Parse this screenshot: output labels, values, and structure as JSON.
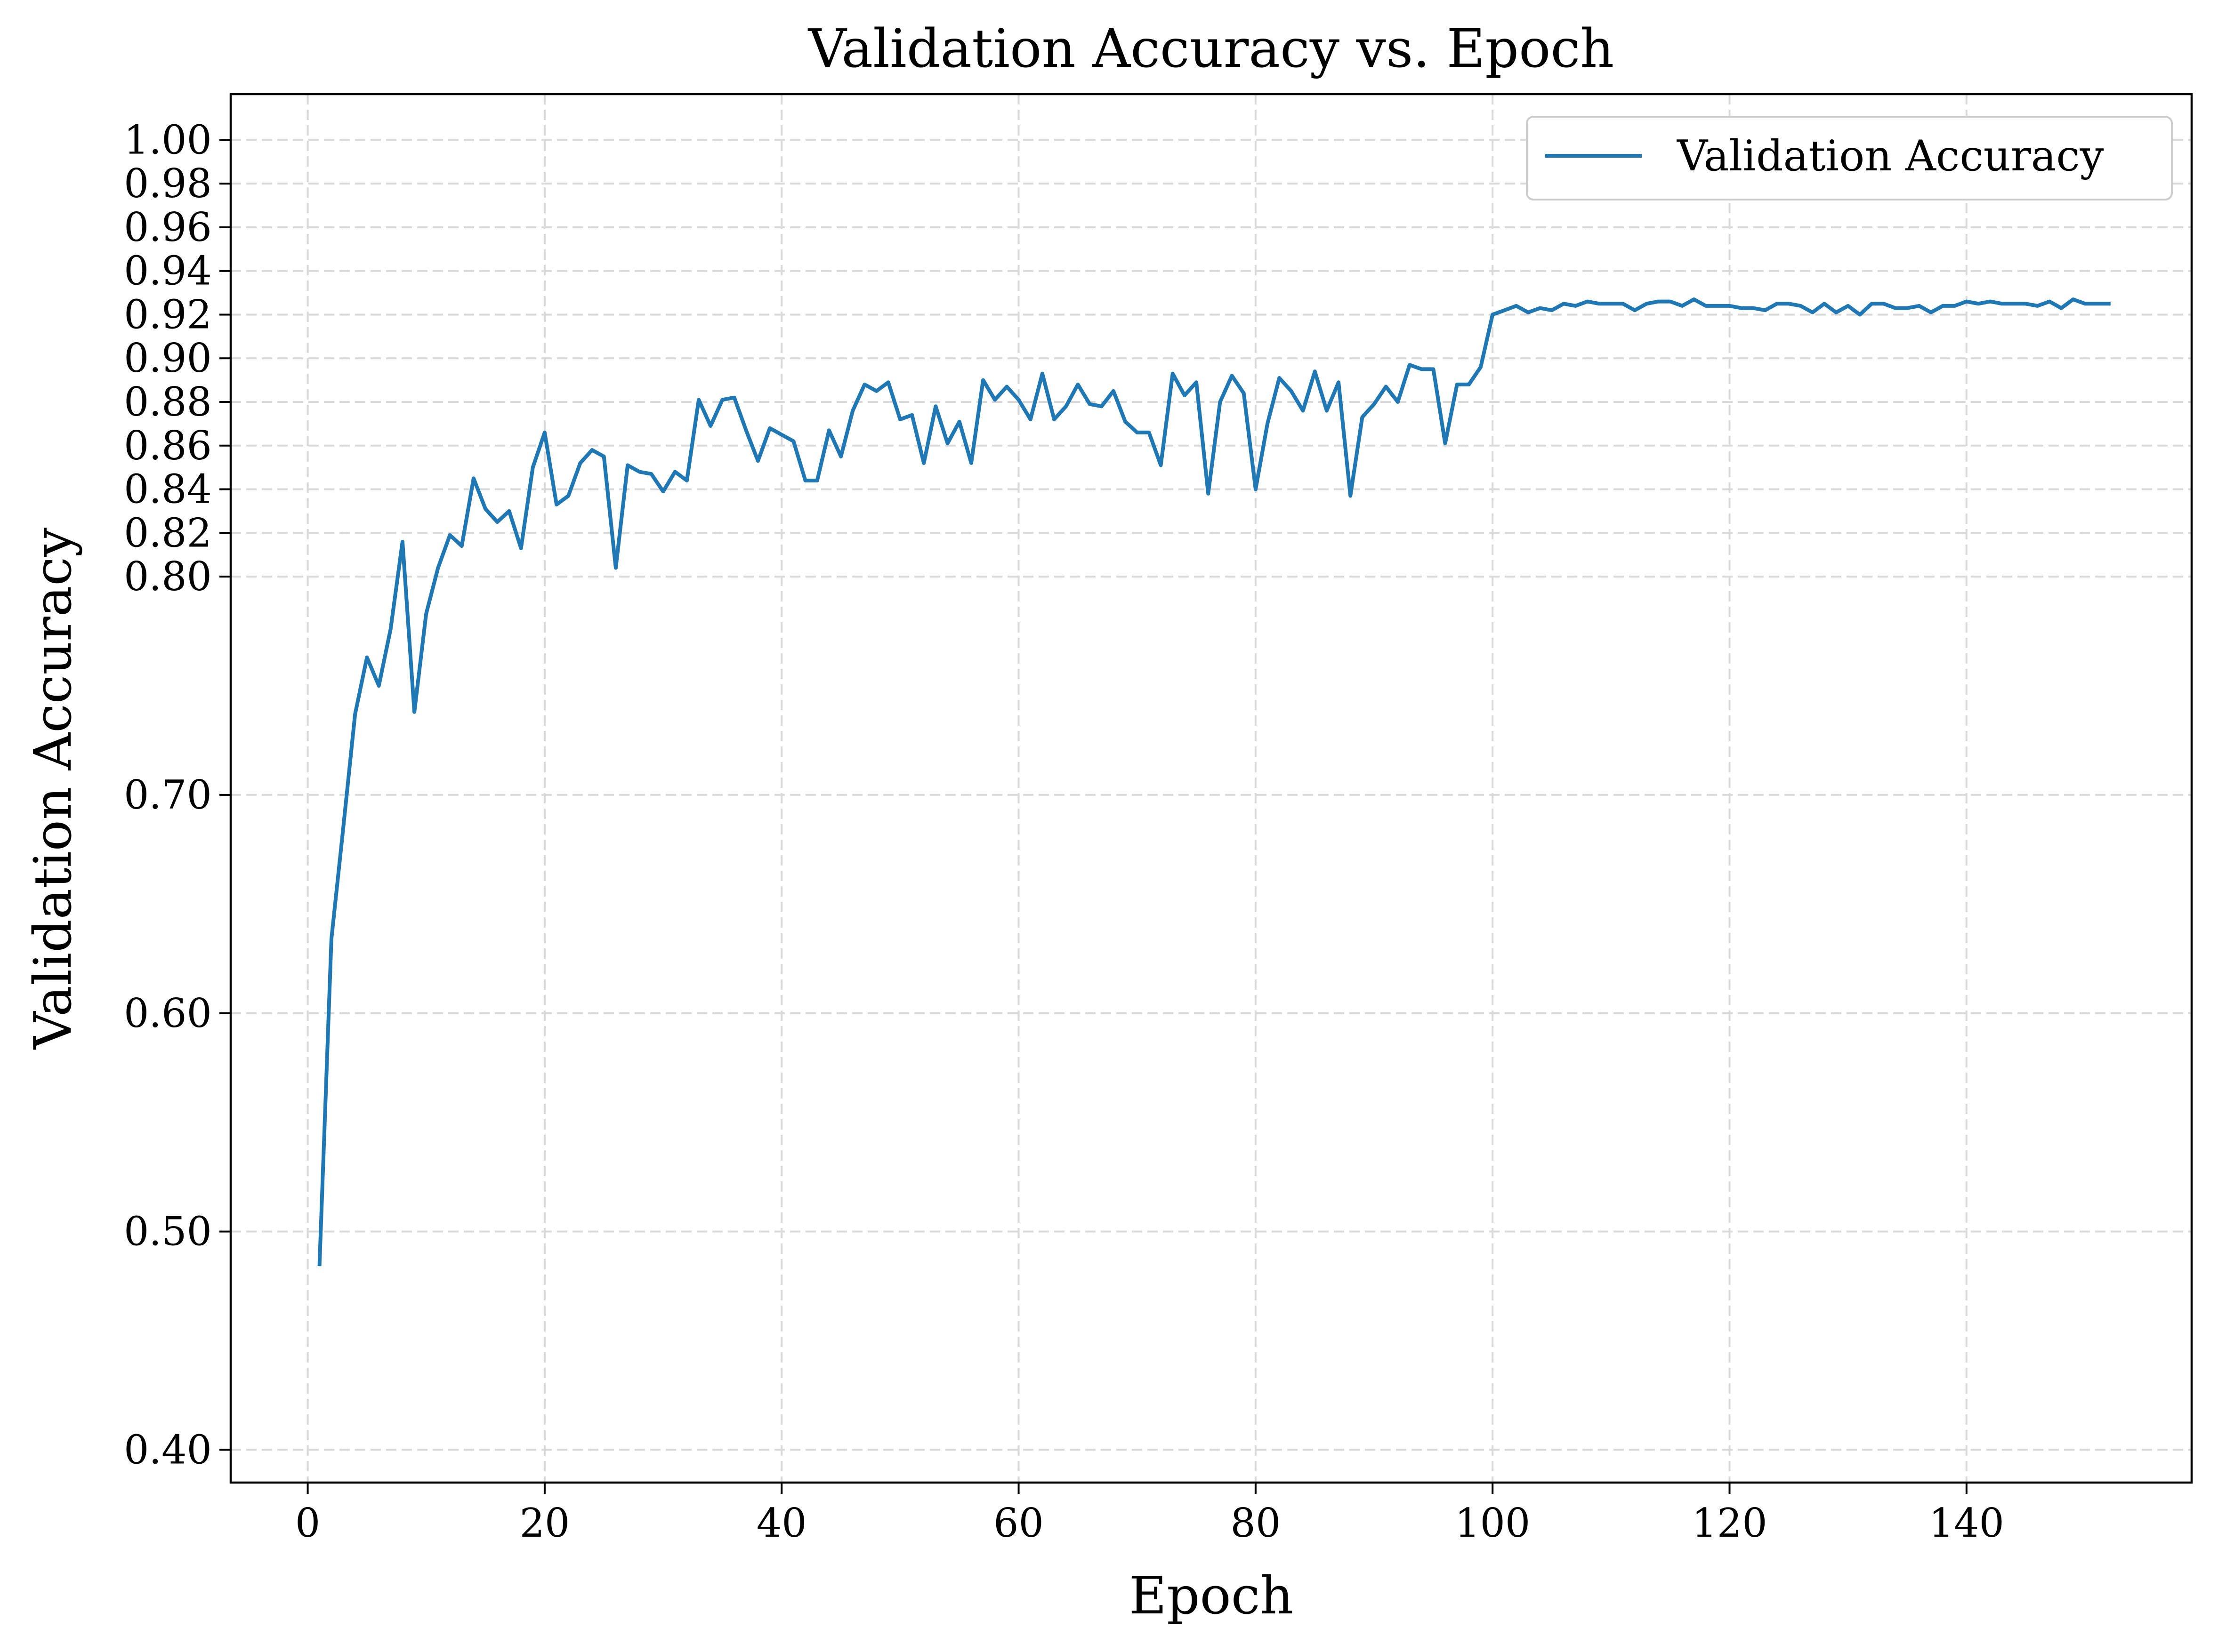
{
  "chart_data": {
    "type": "line",
    "title": "Validation Accuracy vs. Epoch",
    "xlabel": "Epoch",
    "ylabel": "Validation Accuracy",
    "xlim": [
      -6.5,
      159
    ],
    "ylim": [
      0.385,
      1.021
    ],
    "xticks": [
      0,
      20,
      40,
      60,
      80,
      100,
      120,
      140
    ],
    "xtick_labels": [
      "0",
      "20",
      "40",
      "60",
      "80",
      "100",
      "120",
      "140"
    ],
    "yticks": [
      0.4,
      0.5,
      0.6,
      0.7,
      0.8,
      0.82,
      0.84,
      0.86,
      0.88,
      0.9,
      0.92,
      0.94,
      0.96,
      0.98,
      1.0
    ],
    "ytick_labels": [
      "0.40",
      "0.50",
      "0.60",
      "0.70",
      "0.80",
      "0.82",
      "0.84",
      "0.86",
      "0.88",
      "0.90",
      "0.92",
      "0.94",
      "0.96",
      "0.98",
      "1.00"
    ],
    "grid": true,
    "legend_position": "top-right",
    "colors": {
      "series": "#1f77b4"
    },
    "series": [
      {
        "name": "Validation Accuracy",
        "x": [
          1,
          2,
          3,
          4,
          5,
          6,
          7,
          8,
          9,
          10,
          11,
          12,
          13,
          14,
          15,
          16,
          17,
          18,
          19,
          20,
          21,
          22,
          23,
          24,
          25,
          26,
          27,
          28,
          29,
          30,
          31,
          32,
          33,
          34,
          35,
          36,
          37,
          38,
          39,
          40,
          41,
          42,
          43,
          44,
          45,
          46,
          47,
          48,
          49,
          50,
          51,
          52,
          53,
          54,
          55,
          56,
          57,
          58,
          59,
          60,
          61,
          62,
          63,
          64,
          65,
          66,
          67,
          68,
          69,
          70,
          71,
          72,
          73,
          74,
          75,
          76,
          77,
          78,
          79,
          80,
          81,
          82,
          83,
          84,
          85,
          86,
          87,
          88,
          89,
          90,
          91,
          92,
          93,
          94,
          95,
          96,
          97,
          98,
          99,
          100,
          101,
          102,
          103,
          104,
          105,
          106,
          107,
          108,
          109,
          110,
          111,
          112,
          113,
          114,
          115,
          116,
          117,
          118,
          119,
          120,
          121,
          122,
          123,
          124,
          125,
          126,
          127,
          128,
          129,
          130,
          131,
          132,
          133,
          134,
          135,
          136,
          137,
          138,
          139,
          140,
          141,
          142,
          143,
          144,
          145,
          146,
          147,
          148,
          149,
          150,
          151,
          152
        ],
        "y": [
          0.485,
          0.634,
          0.685,
          0.737,
          0.763,
          0.75,
          0.776,
          0.816,
          0.738,
          0.783,
          0.804,
          0.819,
          0.814,
          0.845,
          0.831,
          0.825,
          0.83,
          0.813,
          0.85,
          0.866,
          0.833,
          0.837,
          0.852,
          0.858,
          0.855,
          0.804,
          0.851,
          0.848,
          0.847,
          0.839,
          0.848,
          0.844,
          0.881,
          0.869,
          0.881,
          0.882,
          0.867,
          0.853,
          0.868,
          0.865,
          0.862,
          0.844,
          0.844,
          0.867,
          0.855,
          0.876,
          0.888,
          0.885,
          0.889,
          0.872,
          0.874,
          0.852,
          0.878,
          0.861,
          0.871,
          0.852,
          0.89,
          0.881,
          0.887,
          0.881,
          0.872,
          0.893,
          0.872,
          0.878,
          0.888,
          0.879,
          0.878,
          0.885,
          0.871,
          0.866,
          0.866,
          0.851,
          0.893,
          0.883,
          0.889,
          0.838,
          0.88,
          0.892,
          0.884,
          0.84,
          0.87,
          0.891,
          0.885,
          0.876,
          0.894,
          0.876,
          0.889,
          0.837,
          0.873,
          0.879,
          0.887,
          0.88,
          0.897,
          0.895,
          0.895,
          0.861,
          0.888,
          0.888,
          0.896,
          0.92,
          0.922,
          0.924,
          0.921,
          0.923,
          0.922,
          0.925,
          0.924,
          0.926,
          0.925,
          0.925,
          0.925,
          0.922,
          0.925,
          0.926,
          0.926,
          0.924,
          0.927,
          0.924,
          0.924,
          0.924,
          0.923,
          0.923,
          0.922,
          0.925,
          0.925,
          0.924,
          0.921,
          0.925,
          0.921,
          0.924,
          0.92,
          0.925,
          0.925,
          0.923,
          0.923,
          0.924,
          0.921,
          0.924,
          0.924,
          0.926,
          0.925,
          0.926,
          0.925,
          0.925,
          0.925,
          0.924,
          0.926,
          0.923,
          0.927,
          0.925,
          0.925,
          0.925
        ]
      }
    ]
  }
}
